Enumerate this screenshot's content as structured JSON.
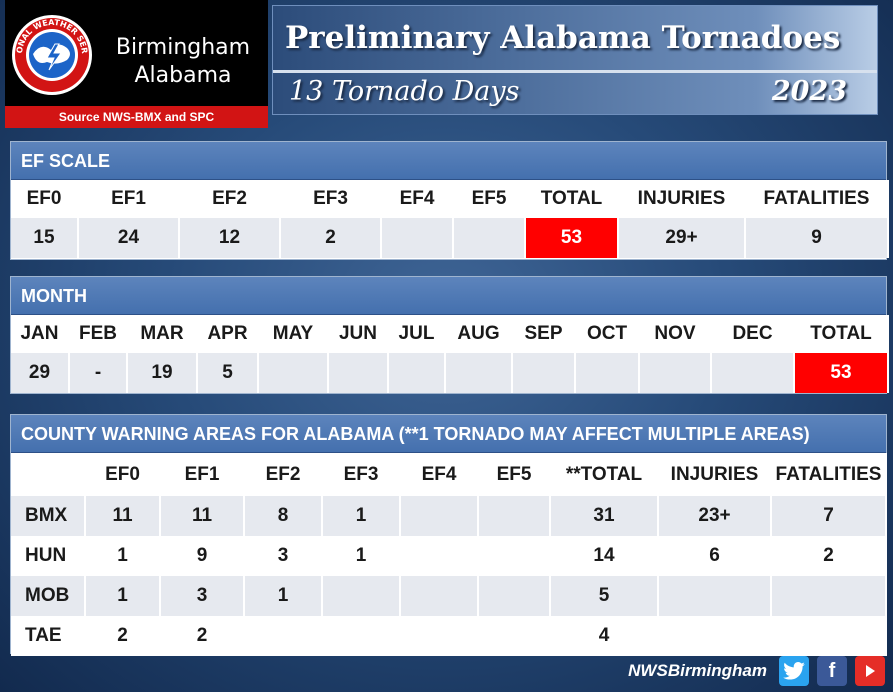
{
  "logo": {
    "city": "Birmingham",
    "state": "Alabama",
    "source": "Source NWS-BMX and SPC",
    "seal_text": "NATIONAL WEATHER SERVICE"
  },
  "title": {
    "main": "Preliminary Alabama Tornadoes",
    "sub": "13 Tornado Days",
    "year": "2023"
  },
  "ef_scale": {
    "heading": "EF SCALE",
    "headers": [
      "EF0",
      "EF1",
      "EF2",
      "EF3",
      "EF4",
      "EF5",
      "TOTAL",
      "INJURIES",
      "FATALITIES"
    ],
    "values": [
      "15",
      "24",
      "12",
      "2",
      "",
      "",
      "53",
      "29+",
      "9"
    ]
  },
  "month": {
    "heading": "MONTH",
    "headers": [
      "JAN",
      "FEB",
      "MAR",
      "APR",
      "MAY",
      "JUN",
      "JUL",
      "AUG",
      "SEP",
      "OCT",
      "NOV",
      "DEC",
      "TOTAL"
    ],
    "values": [
      "29",
      "-",
      "19",
      "5",
      "",
      "",
      "",
      "",
      "",
      "",
      "",
      "",
      "53"
    ]
  },
  "cwa": {
    "heading": "COUNTY WARNING AREAS FOR ALABAMA (**1 TORNADO MAY AFFECT MULTIPLE AREAS)",
    "headers": [
      "",
      "EF0",
      "EF1",
      "EF2",
      "EF3",
      "EF4",
      "EF5",
      "**TOTAL",
      "INJURIES",
      "FATALITIES"
    ],
    "rows": [
      [
        "BMX",
        "11",
        "11",
        "8",
        "1",
        "",
        "",
        "31",
        "23+",
        "7"
      ],
      [
        "HUN",
        "1",
        "9",
        "3",
        "1",
        "",
        "",
        "14",
        "6",
        "2"
      ],
      [
        "MOB",
        "1",
        "3",
        "1",
        "",
        "",
        "",
        "5",
        "",
        ""
      ],
      [
        "TAE",
        "2",
        "2",
        "",
        "",
        "",
        "",
        "4",
        "",
        ""
      ]
    ]
  },
  "footer": {
    "handle": "NWSBirmingham",
    "icons": [
      "twitter-icon",
      "facebook-icon",
      "youtube-icon"
    ]
  },
  "colors": {
    "accent_red": "#ff0000",
    "header_blue": "#4470ae",
    "background_blue": "#264a78"
  }
}
